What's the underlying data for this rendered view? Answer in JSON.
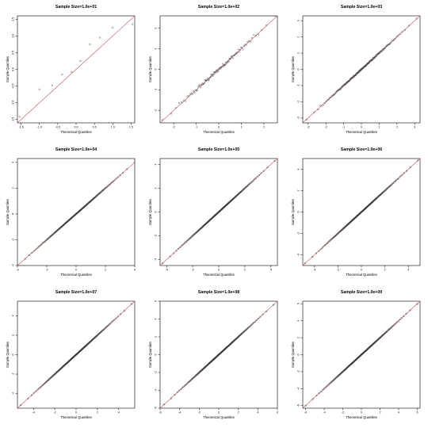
{
  "chart_data": [
    {
      "type": "scatter",
      "title": "Sample Size=1.0e+01",
      "xlabel": "Theoretical Quantiles",
      "ylabel": "Sample Quantiles",
      "xlim": [
        -1.6,
        1.6
      ],
      "ylim": [
        -1.6,
        1.6
      ],
      "xticks": [
        "-1.5",
        "-1.0",
        "-0.5",
        "0.0",
        "0.5",
        "1.0",
        "1.5"
      ],
      "xtick_values": [
        -1.5,
        -1.0,
        -0.5,
        0.0,
        0.5,
        1.0,
        1.5
      ],
      "yticks": [
        "-1.5",
        "-1.0",
        "-0.5",
        "0.0",
        "0.5",
        "1.0",
        "1.5"
      ],
      "ytick_values": [
        -1.5,
        -1.0,
        -0.5,
        0.0,
        0.5,
        1.0,
        1.5
      ],
      "points": [
        [
          -1.54,
          -1.42
        ],
        [
          -1.0,
          -0.6
        ],
        [
          -0.65,
          -0.48
        ],
        [
          -0.38,
          -0.15
        ],
        [
          -0.12,
          -0.08
        ],
        [
          0.12,
          0.25
        ],
        [
          0.38,
          0.75
        ],
        [
          0.65,
          0.95
        ],
        [
          1.0,
          1.25
        ],
        [
          1.54,
          1.35
        ]
      ],
      "line": [
        [
          -1.6,
          -1.6
        ],
        [
          1.6,
          1.6
        ]
      ]
    },
    {
      "type": "scatter",
      "title": "Sample Size=1.0e+02",
      "xlabel": "Theoretical Quantiles",
      "ylabel": "Sample Quantiles",
      "xlim": [
        -2.6,
        2.6
      ],
      "ylim": [
        -2.6,
        2.6
      ],
      "xticks": [
        "-2",
        "-1",
        "0",
        "1",
        "2"
      ],
      "xtick_values": [
        -2,
        -1,
        0,
        1,
        2
      ],
      "yticks": [
        "-2",
        "-1",
        "0",
        "1",
        "2"
      ],
      "ytick_values": [
        -2,
        -1,
        0,
        1,
        2
      ],
      "n": 100,
      "tail_min": -2.3,
      "tail_max": 2.5,
      "line": [
        [
          -2.6,
          -2.6
        ],
        [
          2.6,
          2.6
        ]
      ]
    },
    {
      "type": "scatter",
      "title": "Sample Size=1.0e+03",
      "xlabel": "Theoretical Quantiles",
      "ylabel": "Sample Quantiles",
      "xlim": [
        -3.3,
        3.3
      ],
      "ylim": [
        -3.3,
        3.3
      ],
      "xticks": [
        "-3",
        "-2",
        "-1",
        "0",
        "1",
        "2",
        "3"
      ],
      "xtick_values": [
        -3,
        -2,
        -1,
        0,
        1,
        2,
        3
      ],
      "yticks": [
        "-3",
        "-2",
        "-1",
        "0",
        "1",
        "2",
        "3"
      ],
      "ytick_values": [
        -3,
        -2,
        -1,
        0,
        1,
        2,
        3
      ],
      "n": 160,
      "tail_min": -3.1,
      "tail_max": 3.1,
      "line": [
        [
          -3.3,
          -3.3
        ],
        [
          3.3,
          3.3
        ]
      ]
    },
    {
      "type": "scatter",
      "title": "Sample Size=1.0e+04",
      "xlabel": "Theoretical Quantiles",
      "ylabel": "Sample Quantiles",
      "xlim": [
        -4,
        4
      ],
      "ylim": [
        -4,
        4.3
      ],
      "xticks": [
        "-4",
        "-2",
        "0",
        "2",
        "4"
      ],
      "xtick_values": [
        -4,
        -2,
        0,
        2,
        4
      ],
      "yticks": [
        "-4",
        "-2",
        "0",
        "2",
        "4"
      ],
      "ytick_values": [
        -4,
        -2,
        0,
        2,
        4
      ],
      "n": 200,
      "tail_min": -3.7,
      "tail_max": 4.0,
      "line": [
        [
          -4,
          -4
        ],
        [
          4.3,
          4.3
        ]
      ]
    },
    {
      "type": "scatter",
      "title": "Sample Size=1.0e+05",
      "xlabel": "Theoretical Quantiles",
      "ylabel": "Sample Quantiles",
      "xlim": [
        -4.5,
        4.5
      ],
      "ylim": [
        -4.5,
        4.5
      ],
      "xticks": [
        "-4",
        "-2",
        "0",
        "2",
        "4"
      ],
      "xtick_values": [
        -4,
        -2,
        0,
        2,
        4
      ],
      "yticks": [
        "-4",
        "-2",
        "0",
        "2",
        "4"
      ],
      "ytick_values": [
        -4,
        -2,
        0,
        2,
        4
      ],
      "n": 220,
      "tail_min": -4.2,
      "tail_max": 4.3,
      "line": [
        [
          -4.5,
          -4.5
        ],
        [
          4.5,
          4.5
        ]
      ]
    },
    {
      "type": "scatter",
      "title": "Sample Size=1.0e+06",
      "xlabel": "Theoretical Quantiles",
      "ylabel": "Sample Quantiles",
      "xlim": [
        -5,
        5
      ],
      "ylim": [
        -5,
        5
      ],
      "xticks": [
        "-4",
        "-2",
        "0",
        "2",
        "4"
      ],
      "xtick_values": [
        -4,
        -2,
        0,
        2,
        4
      ],
      "yticks": [
        "-4",
        "-2",
        "0",
        "2",
        "4"
      ],
      "ytick_values": [
        -4,
        -2,
        0,
        2,
        4
      ],
      "n": 220,
      "tail_min": -4.7,
      "tail_max": 4.8,
      "line": [
        [
          -5,
          -5
        ],
        [
          5,
          5
        ]
      ]
    },
    {
      "type": "scatter",
      "title": "Sample Size=1.0e+07",
      "xlabel": "Theoretical Quantiles",
      "ylabel": "Sample Quantiles",
      "xlim": [
        -5.5,
        5.5
      ],
      "ylim": [
        -5.5,
        5.5
      ],
      "xticks": [
        "-4",
        "-2",
        "0",
        "2",
        "4"
      ],
      "xtick_values": [
        -4,
        -2,
        0,
        2,
        4
      ],
      "yticks": [
        "-4",
        "-2",
        "0",
        "2",
        "4"
      ],
      "ytick_values": [
        -4,
        -2,
        0,
        2,
        4
      ],
      "n": 220,
      "tail_min": -5.2,
      "tail_max": 5.2,
      "line": [
        [
          -5.5,
          -5.5
        ],
        [
          5.5,
          5.5
        ]
      ]
    },
    {
      "type": "scatter",
      "title": "Sample Size=1.0e+08",
      "xlabel": "Theoretical Quantiles",
      "ylabel": "Sample Quantiles",
      "xlim": [
        -6,
        6
      ],
      "ylim": [
        -6,
        6
      ],
      "xticks": [
        "-6",
        "-4",
        "-2",
        "0",
        "2",
        "4",
        "6"
      ],
      "xtick_values": [
        -6,
        -4,
        -2,
        0,
        2,
        4,
        6
      ],
      "yticks": [
        "-6",
        "-4",
        "-2",
        "0",
        "2",
        "4",
        "6"
      ],
      "ytick_values": [
        -6,
        -4,
        -2,
        0,
        2,
        4,
        6
      ],
      "n": 220,
      "tail_min": -5.6,
      "tail_max": 5.6,
      "line": [
        [
          -6,
          -6
        ],
        [
          6,
          6
        ]
      ]
    },
    {
      "type": "scatter",
      "title": "Sample Size=1.0e+09",
      "xlabel": "Theoretical Quantiles",
      "ylabel": "Sample Quantiles",
      "xlim": [
        -6.3,
        6.3
      ],
      "ylim": [
        -6.3,
        6.3
      ],
      "xticks": [
        "-6",
        "-4",
        "-2",
        "0",
        "2",
        "4",
        "6"
      ],
      "xtick_values": [
        -6,
        -4,
        -2,
        0,
        2,
        4,
        6
      ],
      "yticks": [
        "-6",
        "-4",
        "-2",
        "0",
        "2",
        "4",
        "6"
      ],
      "ytick_values": [
        -6,
        -4,
        -2,
        0,
        2,
        4,
        6
      ],
      "n": 220,
      "tail_min": -6.0,
      "tail_max": 6.0,
      "line": [
        [
          -6.3,
          -6.3
        ],
        [
          6.3,
          6.3
        ]
      ]
    }
  ],
  "colors": {
    "points": "#333333",
    "line": "#c05050",
    "axes": "#000000"
  }
}
